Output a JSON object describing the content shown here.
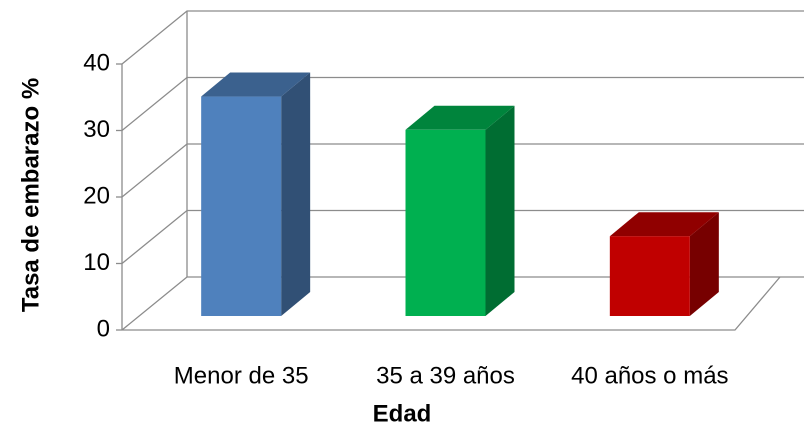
{
  "chart_data": {
    "type": "bar3d",
    "categories": [
      "Menor de 35",
      "35 a 39 años",
      "40 años o más"
    ],
    "values": [
      33,
      28,
      12
    ],
    "colors": [
      "#4f81bd",
      "#00b050",
      "#c00000"
    ],
    "x_label": "Edad",
    "y_label": "Tasa de embarazo %",
    "ylim": [
      0,
      40
    ],
    "yticks": [
      0,
      10,
      20,
      30,
      40
    ],
    "grid": true
  }
}
